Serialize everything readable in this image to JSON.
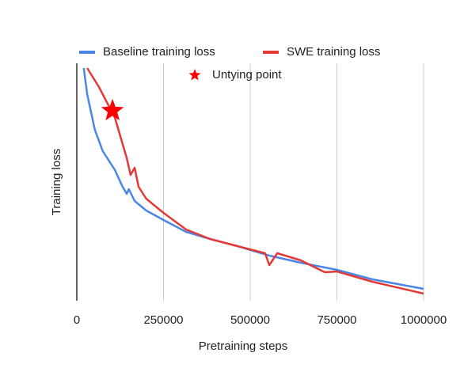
{
  "chart_data": {
    "type": "line",
    "xlabel": "Pretraining steps",
    "ylabel": "Training loss",
    "xlim": [
      0,
      1000000
    ],
    "xticks": [
      0,
      250000,
      500000,
      750000,
      1000000
    ],
    "ylim": [
      0,
      100
    ],
    "grid": true,
    "series": [
      {
        "name": "Baseline training loss",
        "color": "#4a86e8",
        "mark": "line",
        "x": [
          20000,
          30000,
          52000,
          75000,
          110000,
          132000,
          144000,
          150000,
          167000,
          200000,
          250000,
          315000,
          384000,
          463000,
          555000,
          646000,
          750000,
          852000,
          1000000
        ],
        "values": [
          98,
          87,
          72,
          63,
          55,
          48,
          45,
          47,
          42,
          38,
          34,
          29,
          26,
          23,
          19,
          16,
          13,
          9,
          5
        ]
      },
      {
        "name": "SWE training loss",
        "color": "#e53935",
        "mark": "line",
        "x": [
          30000,
          64000,
          110000,
          144000,
          155000,
          167000,
          178000,
          200000,
          250000,
          315000,
          384000,
          463000,
          543000,
          555000,
          578000,
          646000,
          715000,
          750000,
          852000,
          1000000
        ],
        "values": [
          98,
          90,
          77,
          60,
          53,
          56,
          48,
          43,
          37,
          30,
          26,
          23,
          20,
          15,
          20,
          17,
          12,
          12.3,
          8,
          3
        ]
      },
      {
        "name": "Untying point",
        "color": "#ff0000",
        "mark": "star",
        "x": [
          103000
        ],
        "values": [
          80
        ]
      }
    ]
  }
}
